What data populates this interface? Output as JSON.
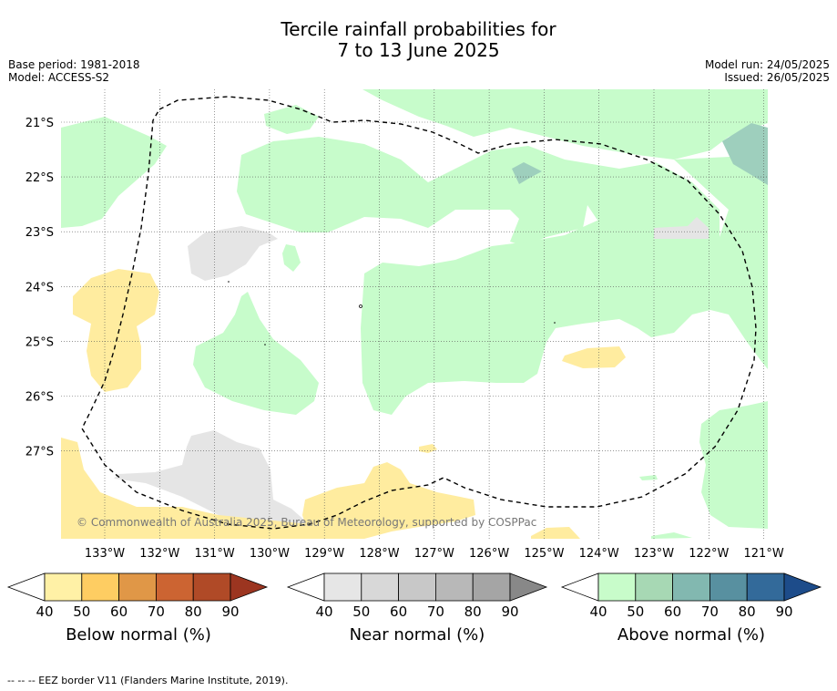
{
  "header": {
    "title_line1": "Tercile rainfall probabilities for",
    "title_line2": "7 to 13 June 2025",
    "base_period": "Base period: 1981-2018",
    "model": "Model: ACCESS-S2",
    "model_run": "Model run: 24/05/2025",
    "issued": "Issued: 26/05/2025"
  },
  "map": {
    "lat_labels": [
      "21°S",
      "22°S",
      "23°S",
      "24°S",
      "25°S",
      "26°S",
      "27°S"
    ],
    "lon_labels": [
      "133°W",
      "132°W",
      "131°W",
      "130°W",
      "129°W",
      "128°W",
      "127°W",
      "126°W",
      "125°W",
      "124°W",
      "123°W",
      "122°W",
      "121°W"
    ],
    "copyright": "© Commonwealth of Australia 2025, Bureau of Meteorology, supported by COSPPac",
    "colors": {
      "below_40": "#ffec9f",
      "near_40": "#e5e5e5",
      "above_40": "#c7fccb",
      "above_60": "#9ecfbd"
    }
  },
  "colorbars": [
    {
      "name": "below",
      "label": "Below normal (%)",
      "ticks": [
        "40",
        "50",
        "60",
        "70",
        "80",
        "90"
      ],
      "colors": [
        "#fff1a6",
        "#fecd62",
        "#e09747",
        "#cc6432",
        "#b04a27",
        "#9c3520"
      ]
    },
    {
      "name": "near",
      "label": "Near normal (%)",
      "ticks": [
        "40",
        "50",
        "60",
        "70",
        "80",
        "90"
      ],
      "colors": [
        "#e6e6e6",
        "#d8d8d8",
        "#c8c8c8",
        "#b8b8b8",
        "#a5a5a5",
        "#888888"
      ]
    },
    {
      "name": "above",
      "label": "Above normal (%)",
      "ticks": [
        "40",
        "50",
        "60",
        "70",
        "80",
        "90"
      ],
      "colors": [
        "#c8fcca",
        "#a7d8b4",
        "#82b8b0",
        "#5890a0",
        "#336a9a",
        "#1d4c8a"
      ]
    }
  ],
  "footnote": "--  --  -- EEZ border V11 (Flanders Marine Institute, 2019)."
}
